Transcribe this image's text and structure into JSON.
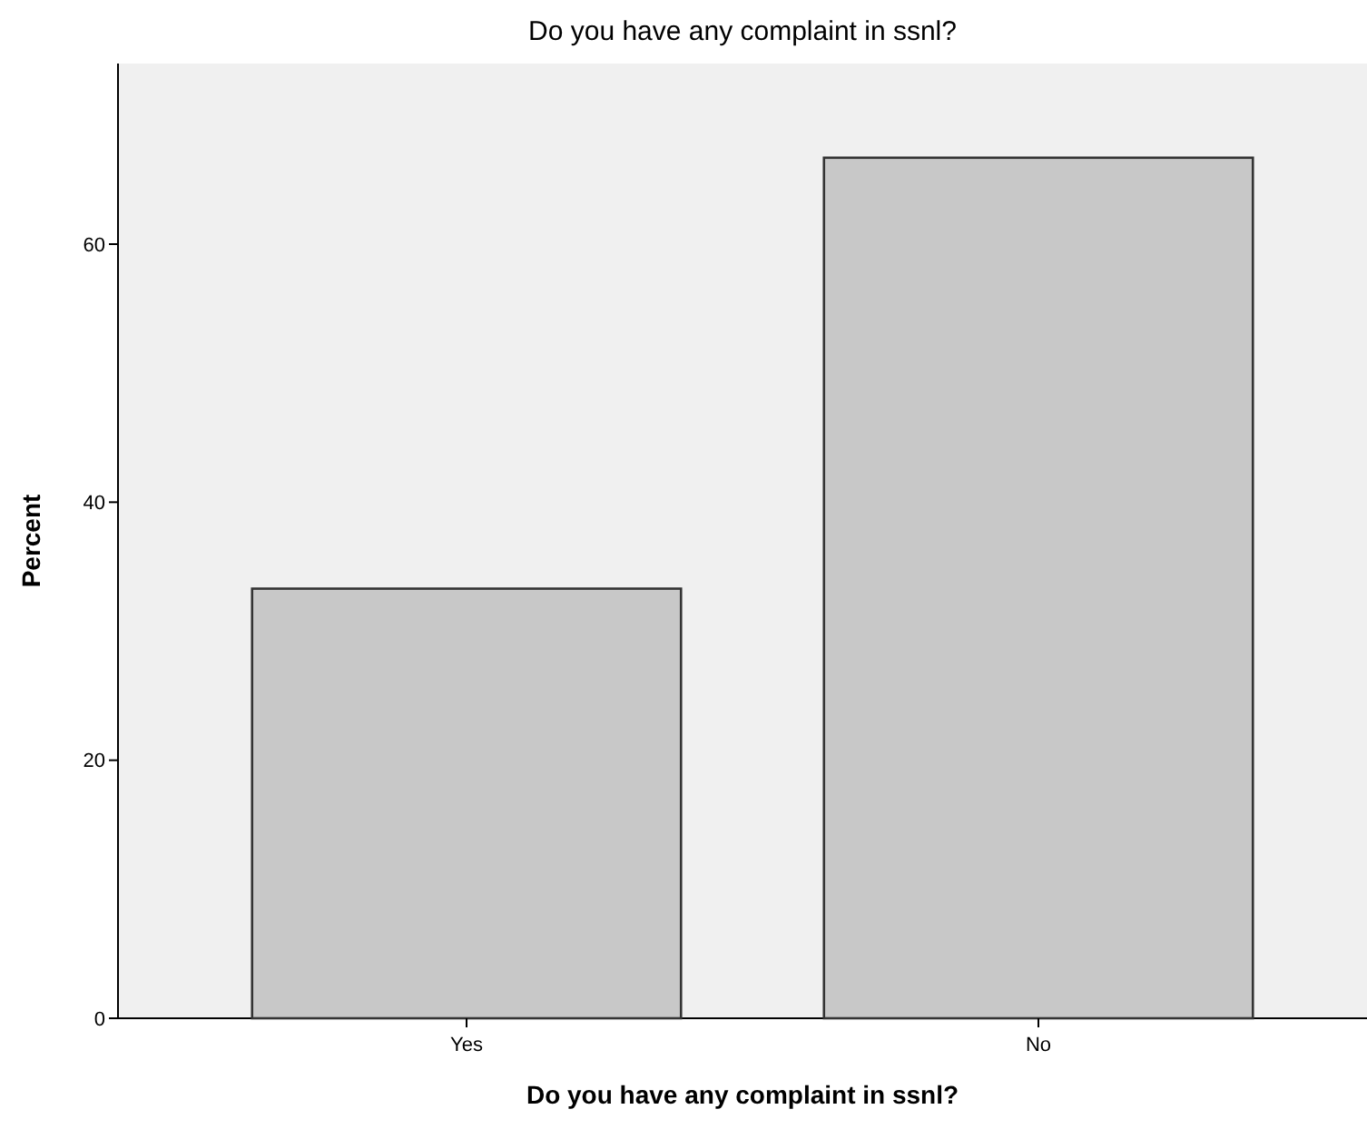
{
  "chart_data": {
    "type": "bar",
    "title": "Do you have any complaint in ssnl?",
    "xlabel": "Do you have any complaint in ssnl?",
    "ylabel": "Percent",
    "categories": [
      "Yes",
      "No"
    ],
    "values": [
      33.3,
      66.7
    ],
    "color": "#c8c8c8",
    "ylim": [
      0,
      74
    ],
    "yticks": [
      0,
      20,
      40,
      60
    ],
    "grid": false
  }
}
